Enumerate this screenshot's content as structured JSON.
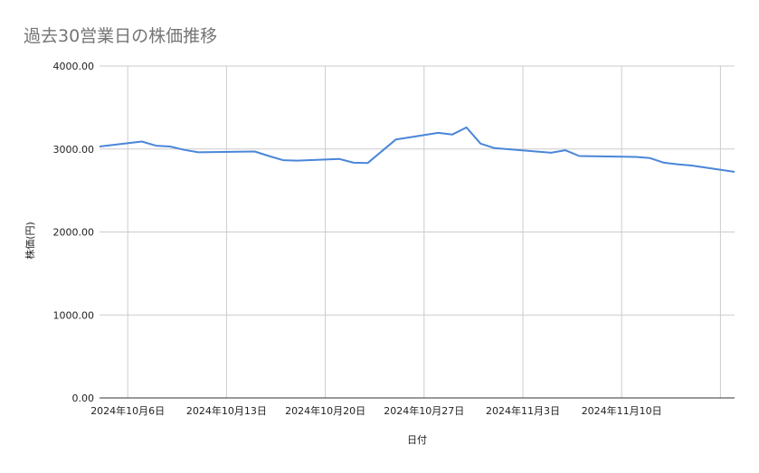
{
  "chart_data": {
    "type": "line",
    "title": "過去30営業日の株価推移",
    "xlabel": "日付",
    "ylabel": "株価(円)",
    "ylim": [
      0,
      4000
    ],
    "xlim": [
      "2024-10-04",
      "2024-11-18"
    ],
    "yticks": [
      0,
      1000,
      2000,
      3000,
      4000
    ],
    "ytick_labels": [
      "0.00",
      "1000.00",
      "2000.00",
      "3000.00",
      "4000.00"
    ],
    "xticks": [
      "2024-10-06",
      "2024-10-13",
      "2024-10-20",
      "2024-10-27",
      "2024-11-03",
      "2024-11-10",
      "2024-11-17"
    ],
    "xtick_labels": [
      "2024年10月6日",
      "2024年10月13日",
      "2024年10月20日",
      "2024年10月27日",
      "2024年11月3日",
      "2024年11月10日",
      ""
    ],
    "grid": true,
    "line_color": "#4a86d8",
    "x": [
      "2024-10-04",
      "2024-10-07",
      "2024-10-08",
      "2024-10-09",
      "2024-10-10",
      "2024-10-11",
      "2024-10-15",
      "2024-10-16",
      "2024-10-17",
      "2024-10-18",
      "2024-10-21",
      "2024-10-22",
      "2024-10-23",
      "2024-10-25",
      "2024-10-28",
      "2024-10-29",
      "2024-10-30",
      "2024-10-31",
      "2024-11-01",
      "2024-11-05",
      "2024-11-06",
      "2024-11-07",
      "2024-11-11",
      "2024-11-12",
      "2024-11-13",
      "2024-11-14",
      "2024-11-15",
      "2024-11-18"
    ],
    "values": [
      3030,
      3090,
      3040,
      3030,
      2990,
      2960,
      2970,
      2915,
      2865,
      2860,
      2880,
      2835,
      2830,
      3115,
      3195,
      3175,
      3260,
      3065,
      3010,
      2955,
      2985,
      2915,
      2905,
      2890,
      2835,
      2815,
      2800,
      2725
    ]
  }
}
